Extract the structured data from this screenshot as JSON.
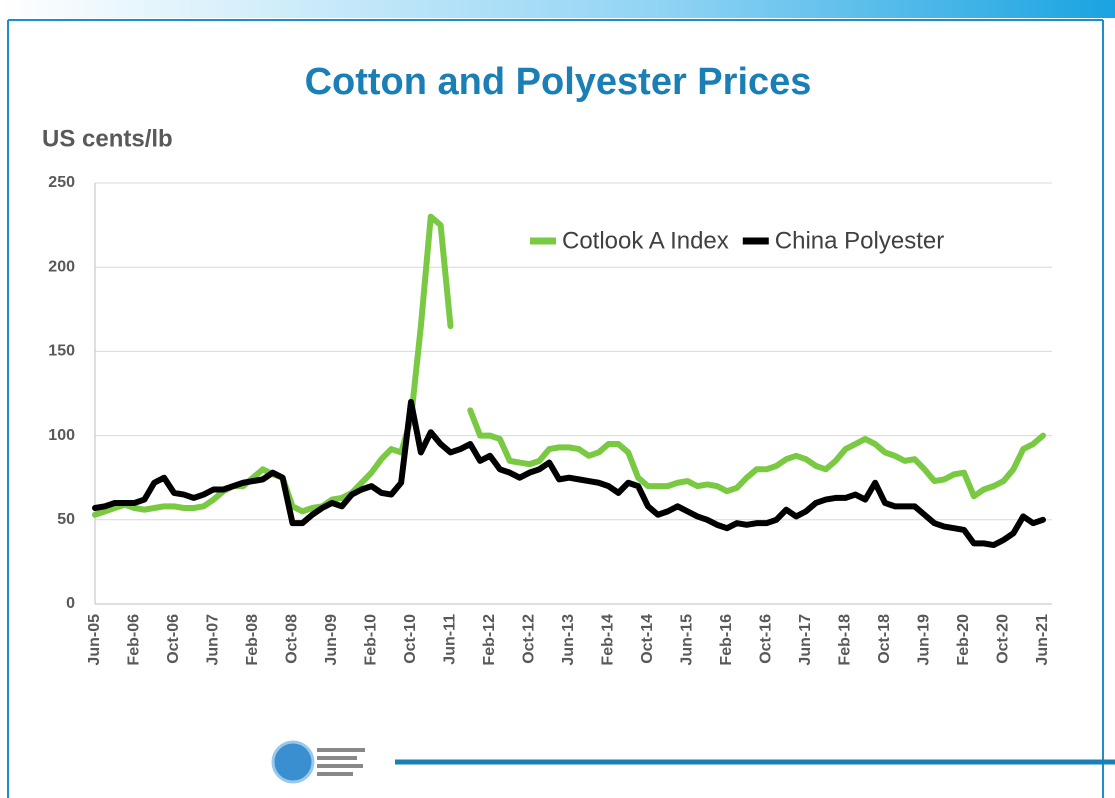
{
  "chart_data": {
    "type": "line",
    "title": "Cotton and Polyester Prices",
    "y_label": "US cents/lb",
    "categories": [
      "Jun-05",
      null,
      null,
      null,
      "Feb-06",
      null,
      null,
      null,
      "Oct-06",
      null,
      null,
      null,
      "Jun-07",
      null,
      null,
      null,
      "Feb-08",
      null,
      null,
      null,
      "Oct-08",
      null,
      null,
      null,
      "Jun-09",
      null,
      null,
      null,
      "Feb-10",
      null,
      null,
      null,
      "Oct-10",
      null,
      null,
      null,
      "Jun-11",
      null,
      null,
      null,
      "Feb-12",
      null,
      null,
      null,
      "Oct-12",
      null,
      null,
      null,
      "Jun-13",
      null,
      null,
      null,
      "Feb-14",
      null,
      null,
      null,
      "Oct-14",
      null,
      null,
      null,
      "Jun-15",
      null,
      null,
      null,
      "Feb-16",
      null,
      null,
      null,
      "Oct-16",
      null,
      null,
      null,
      "Jun-17",
      null,
      null,
      null,
      "Feb-18",
      null,
      null,
      null,
      "Oct-18",
      null,
      null,
      null,
      "Jun-19",
      null,
      null,
      null,
      "Feb-20",
      null,
      null,
      null,
      "Oct-20",
      null,
      null,
      null,
      "Jun-21"
    ],
    "series": [
      {
        "name": "Cotlook A Index",
        "color": "#7ac943",
        "values": [
          53,
          55,
          57,
          59,
          57,
          56,
          57,
          58,
          58,
          57,
          57,
          58,
          62,
          67,
          70,
          70,
          75,
          80,
          77,
          75,
          58,
          55,
          57,
          58,
          62,
          63,
          66,
          72,
          78,
          86,
          92,
          90,
          110,
          165,
          230,
          225,
          165,
          null,
          115,
          100,
          100,
          98,
          85,
          84,
          83,
          85,
          92,
          93,
          93,
          92,
          88,
          90,
          95,
          95,
          90,
          75,
          70,
          70,
          70,
          72,
          73,
          70,
          71,
          70,
          67,
          69,
          75,
          80,
          80,
          82,
          86,
          88,
          86,
          82,
          80,
          85,
          92,
          95,
          98,
          95,
          90,
          88,
          85,
          86,
          80,
          73,
          74,
          77,
          78,
          64,
          68,
          70,
          73,
          80,
          92,
          95,
          100
        ]
      },
      {
        "name": "China Polyester",
        "color": "#000000",
        "values": [
          57,
          58,
          60,
          60,
          60,
          62,
          72,
          75,
          66,
          65,
          63,
          65,
          68,
          68,
          70,
          72,
          73,
          74,
          78,
          75,
          48,
          48,
          53,
          57,
          60,
          58,
          65,
          68,
          70,
          66,
          65,
          72,
          120,
          90,
          102,
          95,
          90,
          92,
          95,
          85,
          88,
          80,
          78,
          75,
          78,
          80,
          84,
          74,
          75,
          74,
          73,
          72,
          70,
          66,
          72,
          70,
          58,
          53,
          55,
          58,
          55,
          52,
          50,
          47,
          45,
          48,
          47,
          48,
          48,
          50,
          56,
          52,
          55,
          60,
          62,
          63,
          63,
          65,
          62,
          72,
          60,
          58,
          58,
          58,
          53,
          48,
          46,
          45,
          44,
          36,
          36,
          35,
          38,
          42,
          52,
          48,
          50
        ]
      }
    ],
    "ylim": [
      0,
      250
    ],
    "yticks": [
      0,
      50,
      100,
      150,
      200,
      250
    ],
    "grid": true,
    "legend": "upper right"
  }
}
